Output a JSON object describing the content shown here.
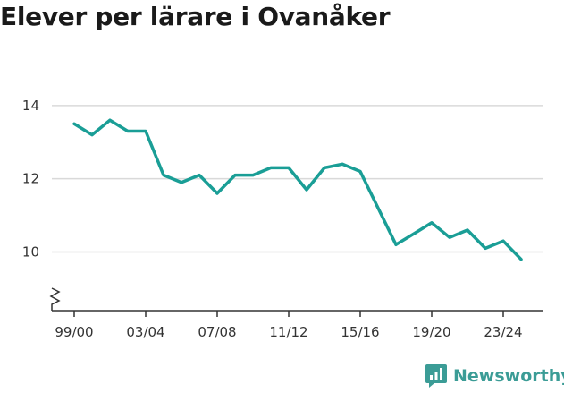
{
  "title": "Elever per lärare i Ovanåker",
  "brand": {
    "name": "Newsworthy",
    "icon": "newsworthy-logo-icon",
    "color": "#3b9c96"
  },
  "chart_data": {
    "type": "line",
    "title": "Elever per lärare i Ovanåker",
    "xlabel": "",
    "ylabel": "",
    "ylim": [
      8.4,
      14.9
    ],
    "y_ticks": [
      10,
      12,
      14
    ],
    "y_tick_labels": [
      "10",
      "12",
      "14"
    ],
    "x_tick_labels": [
      "99/00",
      "03/04",
      "07/08",
      "11/12",
      "15/16",
      "19/20",
      "23/24"
    ],
    "x_tick_indices": [
      0,
      4,
      8,
      12,
      16,
      20,
      24
    ],
    "y_axis_break": true,
    "grid": true,
    "legend": "none",
    "line_color": "#1a9e96",
    "categories": [
      "99/00",
      "00/01",
      "01/02",
      "02/03",
      "03/04",
      "04/05",
      "05/06",
      "06/07",
      "07/08",
      "08/09",
      "09/10",
      "10/11",
      "11/12",
      "12/13",
      "13/14",
      "14/15",
      "15/16",
      "16/17",
      "17/18",
      "18/19",
      "19/20",
      "20/21",
      "21/22",
      "22/23",
      "23/24",
      "24/25"
    ],
    "series": [
      {
        "values": [
          13.5,
          13.2,
          13.6,
          13.3,
          13.3,
          12.1,
          11.9,
          12.1,
          11.6,
          12.1,
          12.1,
          12.3,
          12.3,
          11.7,
          12.3,
          12.4,
          12.2,
          11.2,
          10.2,
          10.5,
          10.8,
          10.4,
          10.6,
          10.1,
          10.3,
          9.8
        ]
      }
    ]
  }
}
